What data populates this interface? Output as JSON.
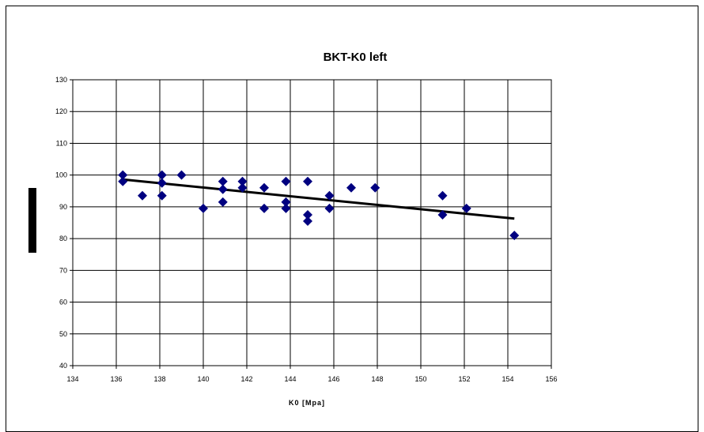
{
  "chart_data": {
    "type": "scatter",
    "title": "BKT-K0 left",
    "xlabel": "K0 [Mpa]",
    "ylabel": "",
    "xlim": [
      134,
      156
    ],
    "ylim": [
      40,
      130
    ],
    "xticks": [
      134,
      136,
      138,
      140,
      142,
      144,
      146,
      148,
      150,
      152,
      154,
      156
    ],
    "yticks": [
      40,
      50,
      60,
      70,
      80,
      90,
      100,
      110,
      120,
      130
    ],
    "grid": true,
    "legend": "none",
    "series": [
      {
        "marker": "diamond",
        "color": "#000080",
        "points": [
          [
            136.3,
            100
          ],
          [
            136.3,
            98
          ],
          [
            137.2,
            93.5
          ],
          [
            138.1,
            100
          ],
          [
            138.1,
            97.5
          ],
          [
            138.1,
            93.5
          ],
          [
            139.0,
            100
          ],
          [
            140.0,
            89.5
          ],
          [
            140.9,
            98
          ],
          [
            140.9,
            95.5
          ],
          [
            140.9,
            91.5
          ],
          [
            141.8,
            98
          ],
          [
            141.8,
            96
          ],
          [
            142.8,
            96
          ],
          [
            142.8,
            89.5
          ],
          [
            143.8,
            98
          ],
          [
            143.8,
            91.5
          ],
          [
            143.8,
            89.5
          ],
          [
            144.8,
            98
          ],
          [
            144.8,
            87.5
          ],
          [
            144.8,
            85.5
          ],
          [
            145.8,
            93.5
          ],
          [
            145.8,
            89.5
          ],
          [
            146.8,
            96
          ],
          [
            147.9,
            96
          ],
          [
            151.0,
            93.5
          ],
          [
            151.0,
            87.5
          ],
          [
            152.1,
            89.5
          ],
          [
            154.3,
            81
          ]
        ]
      },
      {
        "style": "trendline",
        "color": "#000000",
        "points": [
          [
            136.3,
            98.6
          ],
          [
            154.3,
            86.3
          ]
        ]
      }
    ]
  }
}
